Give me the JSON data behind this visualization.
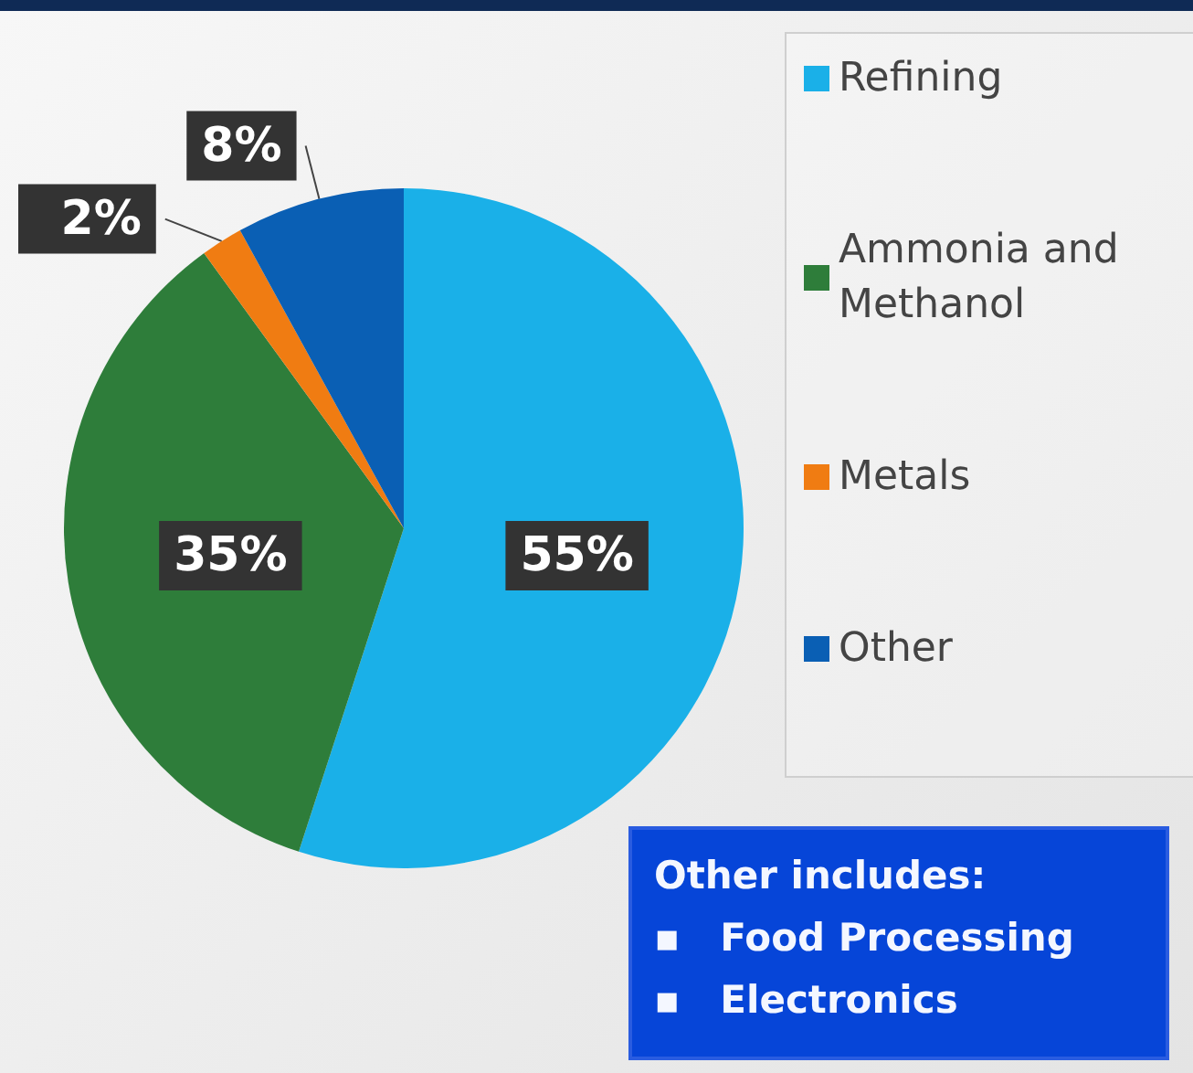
{
  "chart_data": {
    "type": "pie",
    "categories": [
      "Refining",
      "Ammonia and Methanol",
      "Metals",
      "Other"
    ],
    "values": [
      55,
      35,
      2,
      8
    ],
    "colors": [
      "#1ab0e8",
      "#2e7d3a",
      "#f07c12",
      "#0a5fb4"
    ],
    "value_labels": [
      "55%",
      "35%",
      "2%",
      "8%"
    ],
    "legend": "right",
    "annotations": [
      "Other includes:",
      "▪   Food Processing",
      "▪   Electronics"
    ]
  }
}
